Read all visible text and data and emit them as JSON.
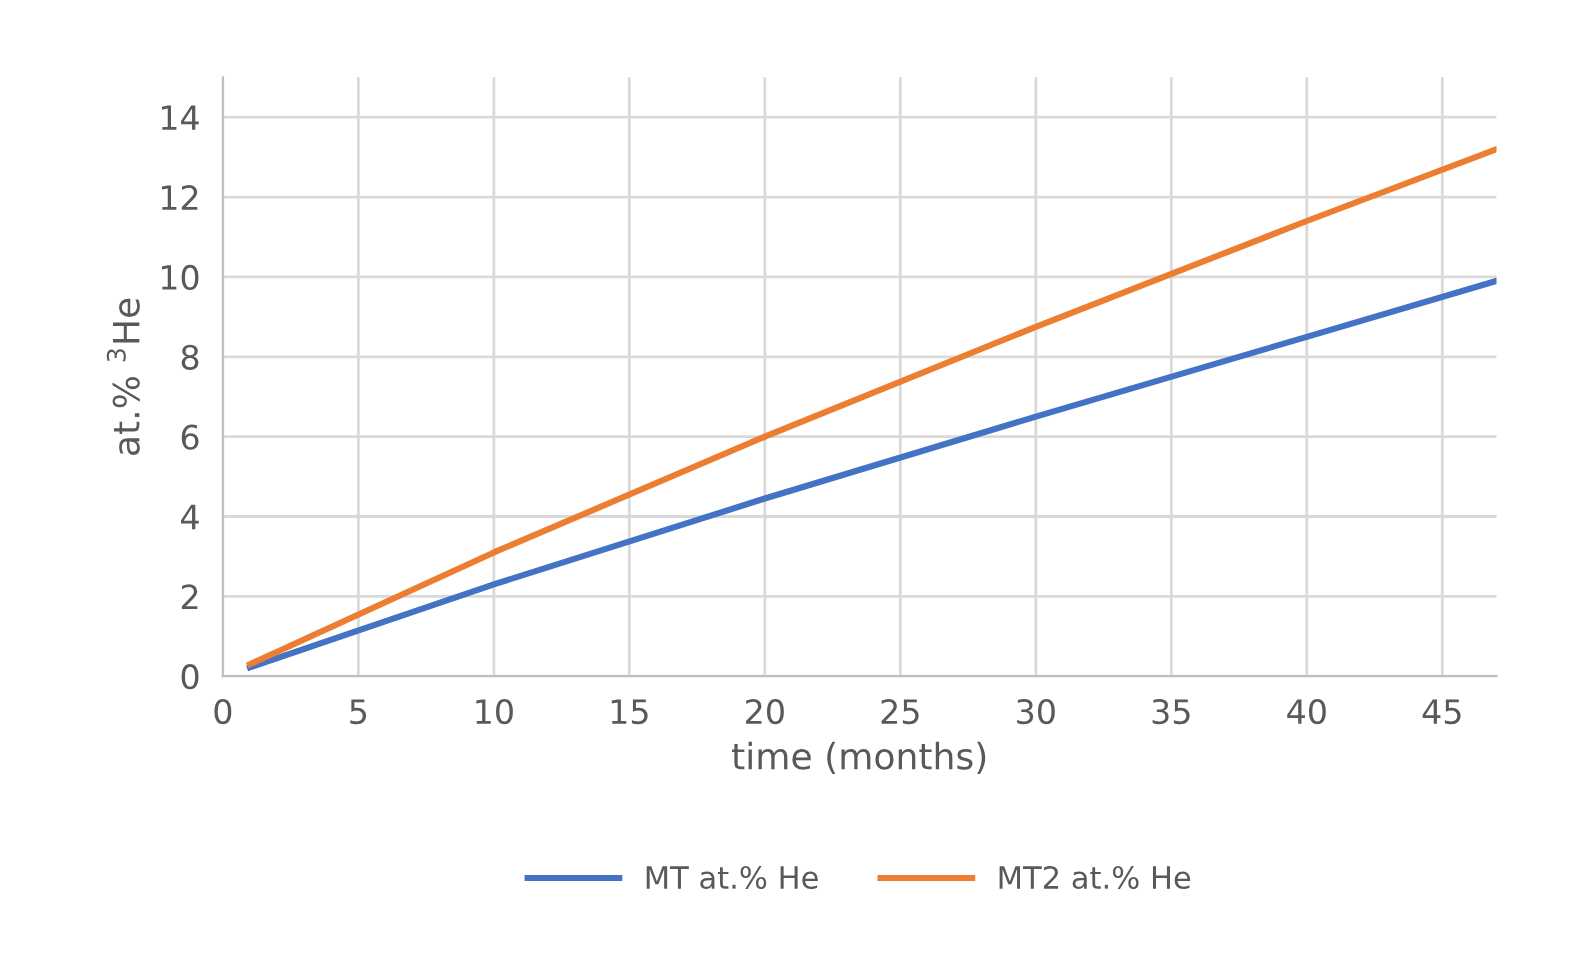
{
  "chart_data": {
    "type": "line",
    "xlabel": "time (months)",
    "ylabel": "at.% $^{3}$He",
    "xlim": [
      0,
      47
    ],
    "xticks": [
      0,
      5,
      10,
      15,
      20,
      25,
      30,
      35,
      40,
      45
    ],
    "ylim": [
      0,
      15
    ],
    "yticks": [
      0,
      2,
      4,
      6,
      8,
      10,
      12,
      14
    ],
    "grid": true,
    "legend": "bottom",
    "marker": "none",
    "line_style": "solid",
    "series": [
      {
        "name": "MT at.% He",
        "color": "#4472c4",
        "x": [
          1,
          10,
          20,
          30,
          40,
          47
        ],
        "values": [
          0.22,
          2.3,
          4.45,
          6.5,
          8.5,
          9.9
        ]
      },
      {
        "name": "MT2 at.% He",
        "color": "#ed7d31",
        "x": [
          1,
          10,
          20,
          30,
          40,
          47
        ],
        "values": [
          0.3,
          3.1,
          6.0,
          8.75,
          11.4,
          13.2
        ]
      }
    ]
  }
}
